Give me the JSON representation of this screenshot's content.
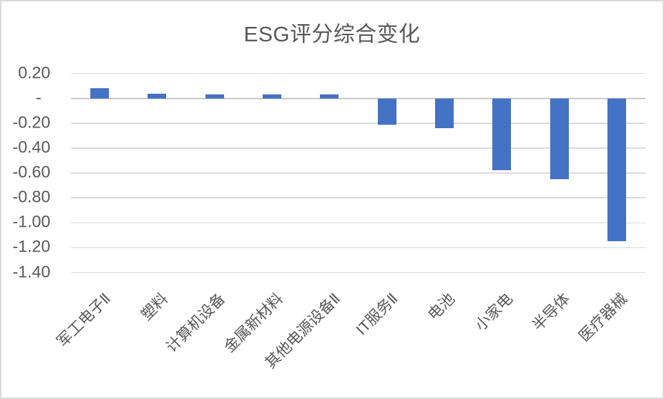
{
  "chart": {
    "title": "ESG评分综合变化"
  },
  "chart_data": {
    "type": "bar",
    "title": "ESG评分综合变化",
    "categories": [
      "军工电子Ⅱ",
      "塑料",
      "计算机设备",
      "金属新材料",
      "其他电源设备Ⅱ",
      "IT服务Ⅱ",
      "电池",
      "小家电",
      "半导体",
      "医疗器械"
    ],
    "values": [
      0.08,
      0.04,
      0.03,
      0.03,
      0.03,
      -0.21,
      -0.24,
      -0.58,
      -0.65,
      -1.15
    ],
    "series_name": "ESG评分综合变化",
    "xlabel": "",
    "ylabel": "",
    "ylim": [
      -1.4,
      0.2
    ],
    "ytick_step": 0.2,
    "yticks": [
      {
        "value": 0.2,
        "label": "0.20"
      },
      {
        "value": 0.0,
        "label": "-"
      },
      {
        "value": -0.2,
        "label": "-0.20"
      },
      {
        "value": -0.4,
        "label": "-0.40"
      },
      {
        "value": -0.6,
        "label": "-0.60"
      },
      {
        "value": -0.8,
        "label": "-0.80"
      },
      {
        "value": -1.0,
        "label": "-1.00"
      },
      {
        "value": -1.2,
        "label": "-1.20"
      },
      {
        "value": -1.4,
        "label": "-1.40"
      }
    ],
    "grid": true,
    "legend": false
  },
  "colors": {
    "bar": "#4472C4",
    "gridline": "#DADADA",
    "zero_line": "#C9C9C9",
    "text": "#595959",
    "frame_border": "#D9D9D9",
    "background": "#FFFFFF"
  }
}
